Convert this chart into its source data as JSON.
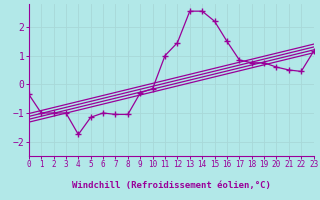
{
  "xlabel": "Windchill (Refroidissement éolien,°C)",
  "bg_color": "#b2e8e8",
  "bottom_bar_color": "#800080",
  "grid_color": "#c8e8e8",
  "line_color": "#990099",
  "x_min": 0,
  "x_max": 23,
  "y_min": -2.5,
  "y_max": 2.8,
  "yticks": [
    -2,
    -1,
    0,
    1,
    2
  ],
  "xticks": [
    0,
    1,
    2,
    3,
    4,
    5,
    6,
    7,
    8,
    9,
    10,
    11,
    12,
    13,
    14,
    15,
    16,
    17,
    18,
    19,
    20,
    21,
    22,
    23
  ],
  "main_line_x": [
    0,
    1,
    2,
    3,
    4,
    5,
    6,
    7,
    8,
    9,
    10,
    11,
    12,
    13,
    14,
    15,
    16,
    17,
    18,
    19,
    20,
    21,
    22,
    23
  ],
  "main_line_y": [
    -0.35,
    -1.0,
    -1.0,
    -1.0,
    -1.75,
    -1.15,
    -1.0,
    -1.05,
    -1.05,
    -0.3,
    -0.15,
    1.0,
    1.45,
    2.55,
    2.55,
    2.2,
    1.5,
    0.85,
    0.75,
    0.75,
    0.6,
    0.5,
    0.45,
    1.15
  ],
  "band_lines": [
    {
      "x": [
        0,
        23
      ],
      "y": [
        -1.32,
        1.1
      ]
    },
    {
      "x": [
        0,
        23
      ],
      "y": [
        -1.22,
        1.2
      ]
    },
    {
      "x": [
        0,
        23
      ],
      "y": [
        -1.12,
        1.3
      ]
    },
    {
      "x": [
        0,
        23
      ],
      "y": [
        -1.02,
        1.4
      ]
    }
  ]
}
